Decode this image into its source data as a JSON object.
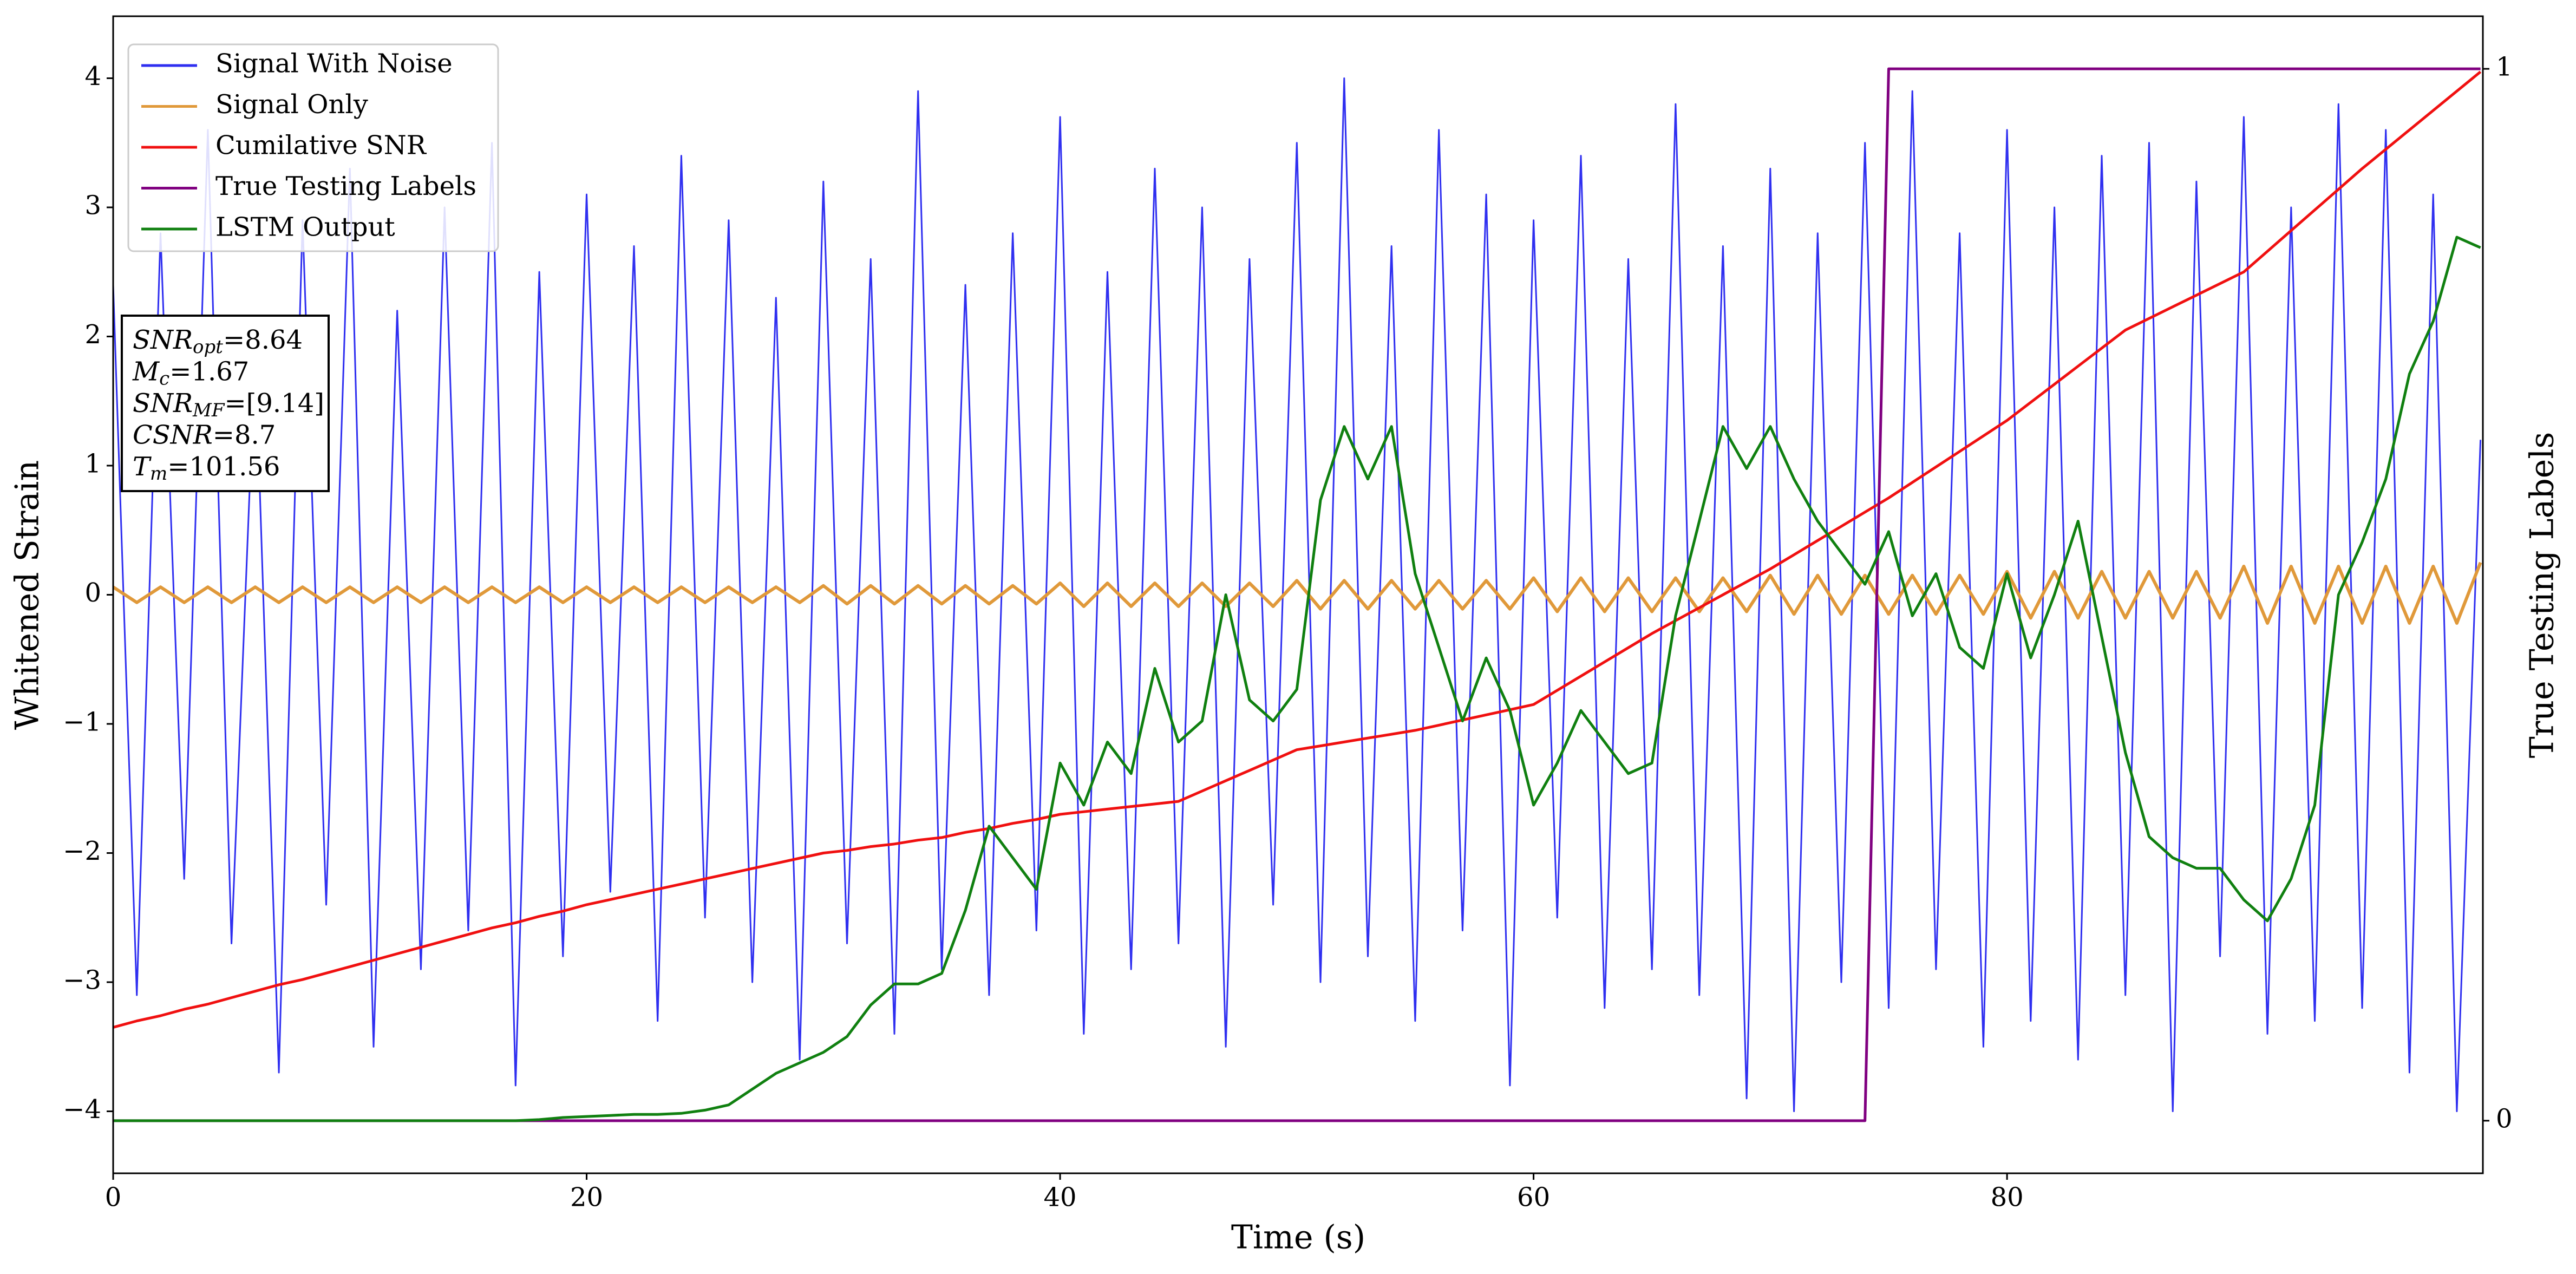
{
  "chart_data": {
    "type": "line",
    "xlabel": "Time (s)",
    "ylabel": "Whitened Strain",
    "y2label": "True Testing Labels",
    "legend": "upper left",
    "grid": false,
    "xlim": [
      0,
      100.1
    ],
    "ylim": [
      -4.48,
      4.48
    ],
    "y2lim": [
      -0.05,
      1.05
    ],
    "xticks": [
      0,
      20,
      40,
      60,
      80
    ],
    "yticks": [
      {
        "value": -4,
        "label": "−4"
      },
      {
        "value": -3,
        "label": "−3"
      },
      {
        "value": -2,
        "label": "−2"
      },
      {
        "value": -1,
        "label": "−1"
      },
      0,
      1,
      2,
      3,
      4
    ],
    "y2ticks": [
      0,
      1
    ],
    "annotations": [
      {
        "symbol": "SNR",
        "subscript": "opt",
        "text": "=8.64"
      },
      {
        "symbol": "M",
        "subscript": "c",
        "text": "=1.67"
      },
      {
        "symbol": "SNR",
        "subscript": "MF",
        "text": "=[9.14]"
      },
      {
        "symbol": "CSNR",
        "subscript": "",
        "text": "=8.7"
      },
      {
        "symbol": "T",
        "subscript": "m",
        "text": "=101.56"
      }
    ],
    "x": [
      0,
      1,
      2,
      3,
      4,
      5,
      6,
      7,
      8,
      9,
      10,
      11,
      12,
      13,
      14,
      15,
      16,
      17,
      18,
      19,
      20,
      21,
      22,
      23,
      24,
      25,
      26,
      27,
      28,
      29,
      30,
      31,
      32,
      33,
      34,
      35,
      36,
      37,
      38,
      39,
      40,
      41,
      42,
      43,
      44,
      45,
      46,
      47,
      48,
      49,
      50,
      51,
      52,
      53,
      54,
      55,
      56,
      57,
      58,
      59,
      60,
      61,
      62,
      63,
      64,
      65,
      66,
      67,
      68,
      69,
      70,
      71,
      72,
      73,
      74,
      75,
      76,
      77,
      78,
      79,
      80,
      81,
      82,
      83,
      84,
      85,
      86,
      87,
      88,
      89,
      90,
      91,
      92,
      93,
      94,
      95,
      96,
      97,
      98,
      99,
      100
    ],
    "series": [
      {
        "name": "Signal With Noise",
        "color": "#2f2ff0",
        "width": 3,
        "values": [
          2.4,
          -3.1,
          2.8,
          -2.2,
          3.6,
          -2.7,
          1.9,
          -3.7,
          2.9,
          -2.4,
          3.3,
          -3.5,
          2.2,
          -2.9,
          3.0,
          -2.6,
          3.5,
          -3.8,
          2.5,
          -2.8,
          3.1,
          -2.3,
          2.7,
          -3.3,
          3.4,
          -2.5,
          2.9,
          -3.0,
          2.3,
          -3.6,
          3.2,
          -2.7,
          2.6,
          -3.4,
          3.9,
          -2.9,
          2.4,
          -3.1,
          2.8,
          -2.6,
          3.7,
          -3.4,
          2.5,
          -2.9,
          3.3,
          -2.7,
          3.0,
          -3.5,
          2.6,
          -2.4,
          3.5,
          -3.0,
          4.0,
          -2.8,
          2.7,
          -3.3,
          3.6,
          -2.6,
          3.1,
          -3.8,
          2.9,
          -2.5,
          3.4,
          -3.2,
          2.6,
          -2.9,
          3.8,
          -3.1,
          2.7,
          -3.9,
          3.3,
          -4.0,
          2.8,
          -3.0,
          3.5,
          -3.2,
          3.9,
          -2.9,
          2.8,
          -3.5,
          3.6,
          -3.3,
          3.0,
          -3.6,
          3.4,
          -3.1,
          3.5,
          -4.0,
          3.2,
          -2.8,
          3.7,
          -3.4,
          3.0,
          -3.3,
          3.8,
          -3.2,
          3.6,
          -3.7,
          3.1,
          -4.0,
          1.2
        ]
      },
      {
        "name": "Signal Only",
        "color": "#e0993a",
        "width": 6,
        "values": [
          0.06,
          -0.06,
          0.06,
          -0.06,
          0.06,
          -0.06,
          0.06,
          -0.06,
          0.06,
          -0.06,
          0.06,
          -0.06,
          0.06,
          -0.06,
          0.06,
          -0.06,
          0.06,
          -0.06,
          0.06,
          -0.06,
          0.06,
          -0.06,
          0.06,
          -0.06,
          0.06,
          -0.06,
          0.06,
          -0.06,
          0.06,
          -0.06,
          0.07,
          -0.07,
          0.07,
          -0.07,
          0.07,
          -0.07,
          0.07,
          -0.07,
          0.07,
          -0.07,
          0.09,
          -0.09,
          0.09,
          -0.09,
          0.09,
          -0.09,
          0.09,
          -0.09,
          0.09,
          -0.09,
          0.11,
          -0.11,
          0.11,
          -0.11,
          0.11,
          -0.11,
          0.11,
          -0.11,
          0.11,
          -0.11,
          0.13,
          -0.13,
          0.13,
          -0.13,
          0.13,
          -0.13,
          0.13,
          -0.13,
          0.13,
          -0.13,
          0.15,
          -0.15,
          0.15,
          -0.15,
          0.15,
          -0.15,
          0.15,
          -0.15,
          0.15,
          -0.15,
          0.18,
          -0.18,
          0.18,
          -0.18,
          0.18,
          -0.18,
          0.18,
          -0.18,
          0.18,
          -0.18,
          0.22,
          -0.22,
          0.22,
          -0.22,
          0.22,
          -0.22,
          0.22,
          -0.22,
          0.22,
          -0.22,
          0.25
        ]
      },
      {
        "name": "Cumilative SNR",
        "color": "#f01010",
        "width": 5,
        "values": [
          -3.35,
          -3.3,
          -3.26,
          -3.21,
          -3.17,
          -3.12,
          -3.07,
          -3.02,
          -2.98,
          -2.93,
          -2.88,
          -2.83,
          -2.78,
          -2.73,
          -2.68,
          -2.63,
          -2.58,
          -2.54,
          -2.49,
          -2.45,
          -2.4,
          -2.36,
          -2.32,
          -2.28,
          -2.24,
          -2.2,
          -2.16,
          -2.12,
          -2.08,
          -2.04,
          -2.0,
          -1.98,
          -1.95,
          -1.93,
          -1.9,
          -1.88,
          -1.84,
          -1.81,
          -1.77,
          -1.74,
          -1.7,
          -1.68,
          -1.66,
          -1.64,
          -1.62,
          -1.6,
          -1.52,
          -1.44,
          -1.36,
          -1.28,
          -1.2,
          -1.17,
          -1.14,
          -1.11,
          -1.08,
          -1.05,
          -1.01,
          -0.97,
          -0.93,
          -0.89,
          -0.85,
          -0.74,
          -0.63,
          -0.52,
          -0.41,
          -0.3,
          -0.2,
          -0.1,
          0.0,
          0.1,
          0.2,
          0.31,
          0.42,
          0.53,
          0.64,
          0.75,
          0.87,
          0.99,
          1.11,
          1.23,
          1.35,
          1.49,
          1.63,
          1.77,
          1.91,
          2.05,
          2.14,
          2.23,
          2.32,
          2.41,
          2.5,
          2.66,
          2.82,
          2.98,
          3.14,
          3.3,
          3.45,
          3.6,
          3.75,
          3.9,
          4.05
        ]
      },
      {
        "name": "True Testing Labels",
        "color": "#800080",
        "width": 5,
        "axis": "y2",
        "values": [
          0,
          0,
          0,
          0,
          0,
          0,
          0,
          0,
          0,
          0,
          0,
          0,
          0,
          0,
          0,
          0,
          0,
          0,
          0,
          0,
          0,
          0,
          0,
          0,
          0,
          0,
          0,
          0,
          0,
          0,
          0,
          0,
          0,
          0,
          0,
          0,
          0,
          0,
          0,
          0,
          0,
          0,
          0,
          0,
          0,
          0,
          0,
          0,
          0,
          0,
          0,
          0,
          0,
          0,
          0,
          0,
          0,
          0,
          0,
          0,
          0,
          0,
          0,
          0,
          0,
          0,
          0,
          0,
          0,
          0,
          0,
          0,
          0,
          0,
          0,
          1,
          1,
          1,
          1,
          1,
          1,
          1,
          1,
          1,
          1,
          1,
          1,
          1,
          1,
          1,
          1,
          1,
          1,
          1,
          1,
          1,
          1,
          1,
          1,
          1,
          1
        ]
      },
      {
        "name": "LSTM Output",
        "color": "#108010",
        "width": 5,
        "axis": "y2",
        "values": [
          0,
          0,
          0,
          0,
          0,
          0,
          0,
          0,
          0,
          0,
          0,
          0,
          0,
          0,
          0,
          0,
          0,
          0,
          0.001,
          0.003,
          0.004,
          0.005,
          0.006,
          0.006,
          0.007,
          0.01,
          0.015,
          0.03,
          0.045,
          0.055,
          0.065,
          0.08,
          0.11,
          0.13,
          0.13,
          0.14,
          0.2,
          0.28,
          0.25,
          0.22,
          0.34,
          0.3,
          0.36,
          0.33,
          0.43,
          0.36,
          0.38,
          0.5,
          0.4,
          0.38,
          0.41,
          0.59,
          0.66,
          0.61,
          0.66,
          0.52,
          0.45,
          0.38,
          0.44,
          0.39,
          0.3,
          0.34,
          0.39,
          0.36,
          0.33,
          0.34,
          0.48,
          0.57,
          0.66,
          0.62,
          0.66,
          0.61,
          0.57,
          0.54,
          0.51,
          0.56,
          0.48,
          0.52,
          0.45,
          0.43,
          0.52,
          0.44,
          0.5,
          0.57,
          0.46,
          0.35,
          0.27,
          0.25,
          0.24,
          0.24,
          0.21,
          0.19,
          0.23,
          0.3,
          0.5,
          0.55,
          0.61,
          0.71,
          0.76,
          0.84,
          0.83
        ]
      }
    ]
  }
}
